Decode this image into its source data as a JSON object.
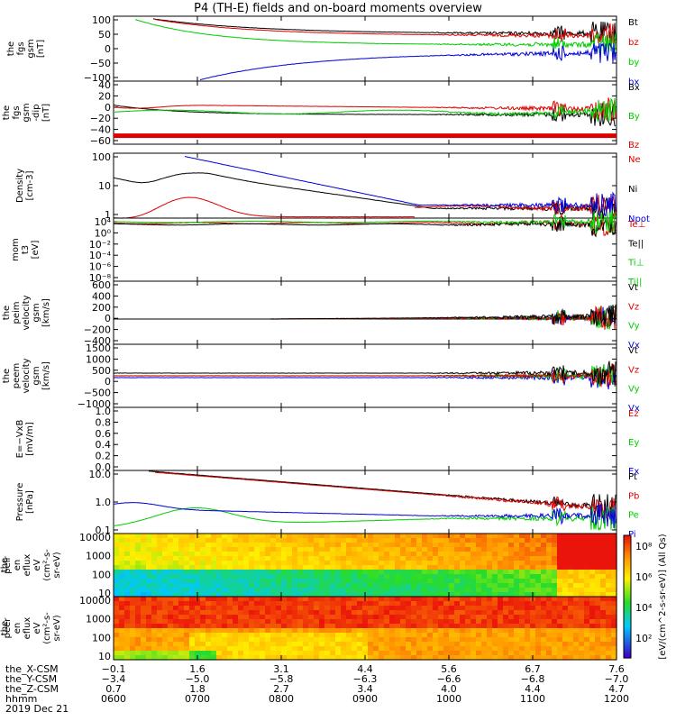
{
  "title": "P4 (TH-E) fields and on-board moments overview",
  "chart_data": [
    {
      "type": "line",
      "ylabel": [
        "the",
        "fgs",
        "gsm",
        "[nT]"
      ],
      "yticks": [
        "100",
        "50",
        "0",
        "−50",
        "−100"
      ],
      "ylim": [
        -100,
        100
      ],
      "legend": [
        "Bt",
        "bz",
        "by",
        "bx"
      ],
      "legend_colors": [
        "#000000",
        "#dd0000",
        "#00cc00",
        "#0000dd"
      ]
    },
    {
      "type": "line",
      "ylabel": [
        "the",
        "fgs",
        "gsm",
        "-dip",
        "[nT]"
      ],
      "yticks": [
        "40",
        "20",
        "0",
        "−20",
        "−40",
        "−60"
      ],
      "ylim": [
        -75,
        40
      ],
      "legend": [
        "Bx",
        "By",
        "Bz"
      ],
      "legend_colors": [
        "#000000",
        "#00cc00",
        "#dd0000"
      ]
    },
    {
      "type": "line",
      "ylabel": [
        "Density",
        "[cm-3]"
      ],
      "yticks": [
        "100",
        "10",
        "1"
      ],
      "yscale": "log",
      "legend": [
        "Ne",
        "Ni",
        "Npot"
      ],
      "legend_colors": [
        "#dd0000",
        "#000000",
        "#0000dd"
      ]
    },
    {
      "type": "line",
      "ylabel": [
        "mom",
        "t3",
        "[eV]"
      ],
      "yticks": [
        "10⁴",
        "10⁰",
        "10⁻²",
        "10⁻⁴",
        "10⁻⁶",
        "10⁻⁸"
      ],
      "yscale": "log",
      "legend": [
        "Te⊥",
        "Te||",
        "Ti⊥",
        "Ti||"
      ],
      "legend_colors": [
        "#dd0000",
        "#000000",
        "#00cc00",
        "#00cc00"
      ]
    },
    {
      "type": "line",
      "ylabel": [
        "the",
        "peim",
        "velocity",
        "gsm",
        "[km/s]"
      ],
      "yticks": [
        "600",
        "400",
        "200",
        "0",
        "−200",
        "−400"
      ],
      "ylim": [
        -400,
        600
      ],
      "legend": [
        "Vt",
        "Vz",
        "Vy",
        "Vx"
      ],
      "legend_colors": [
        "#000000",
        "#dd0000",
        "#00cc00",
        "#0000dd"
      ]
    },
    {
      "type": "line",
      "ylabel": [
        "the",
        "peem",
        "velocity",
        "gsm",
        "[km/s]"
      ],
      "yticks": [
        "1500",
        "1000",
        "500",
        "0",
        "−500",
        "−1000"
      ],
      "ylim": [
        -1500,
        1500
      ],
      "legend": [
        "Vt",
        "Vz",
        "Vy",
        "Vx"
      ],
      "legend_colors": [
        "#000000",
        "#dd0000",
        "#00cc00",
        "#0000dd"
      ]
    },
    {
      "type": "line",
      "ylabel": [
        "E=−VxB",
        "[mV/m]"
      ],
      "yticks": [
        "1.0",
        "0.8",
        "0.6",
        "0.4",
        "0.2",
        "0.0"
      ],
      "ylim": [
        0,
        1
      ],
      "legend": [
        "Ez",
        "Ey",
        "Ex"
      ],
      "legend_colors": [
        "#dd0000",
        "#00cc00",
        "#0000dd"
      ]
    },
    {
      "type": "line",
      "ylabel": [
        "Pressure",
        "[nPa]"
      ],
      "yticks": [
        "10.0",
        "1.0",
        "0.1"
      ],
      "yscale": "log",
      "legend": [
        "Pt",
        "Pb",
        "Pe",
        "Pi"
      ],
      "legend_colors": [
        "#000000",
        "#dd0000",
        "#00cc00",
        "#0000dd"
      ]
    },
    {
      "type": "heatmap",
      "ylabel": [
        "the",
        "peir",
        "en",
        "eflux",
        "eV",
        "(cm²-s-",
        "sr-eV)"
      ],
      "yticks": [
        "10000",
        "1000",
        "100",
        "10"
      ],
      "yscale": "log"
    },
    {
      "type": "heatmap",
      "ylabel": [
        "the",
        "peer",
        "en",
        "eflux",
        "eV",
        "(cm²-s-",
        "sr-eV)"
      ],
      "yticks": [
        "10000",
        "1000",
        "100",
        "10"
      ],
      "yscale": "log"
    }
  ],
  "colorbar": {
    "label": "[eV/(cm^2-s-sr-eV)] (All Qs)",
    "ticks": [
      "10⁸",
      "10⁶",
      "10⁴",
      "10²"
    ]
  },
  "orbit_rows": [
    {
      "label": "the_X-CSM",
      "values": [
        "−0.1",
        "1.6",
        "3.1",
        "4.4",
        "5.6",
        "6.7",
        "7.6"
      ]
    },
    {
      "label": "the_Y-CSM",
      "values": [
        "−3.4",
        "−5.0",
        "−5.8",
        "−6.3",
        "−6.6",
        "−6.8",
        "−7.0"
      ]
    },
    {
      "label": "the_Z-CSM",
      "values": [
        "0.7",
        "1.8",
        "2.7",
        "3.4",
        "4.0",
        "4.4",
        "4.7"
      ]
    },
    {
      "label": "hhmm",
      "values": [
        "0600",
        "0700",
        "0800",
        "0900",
        "1000",
        "1100",
        "1200"
      ]
    }
  ],
  "date_label": "2019 Dec 21"
}
